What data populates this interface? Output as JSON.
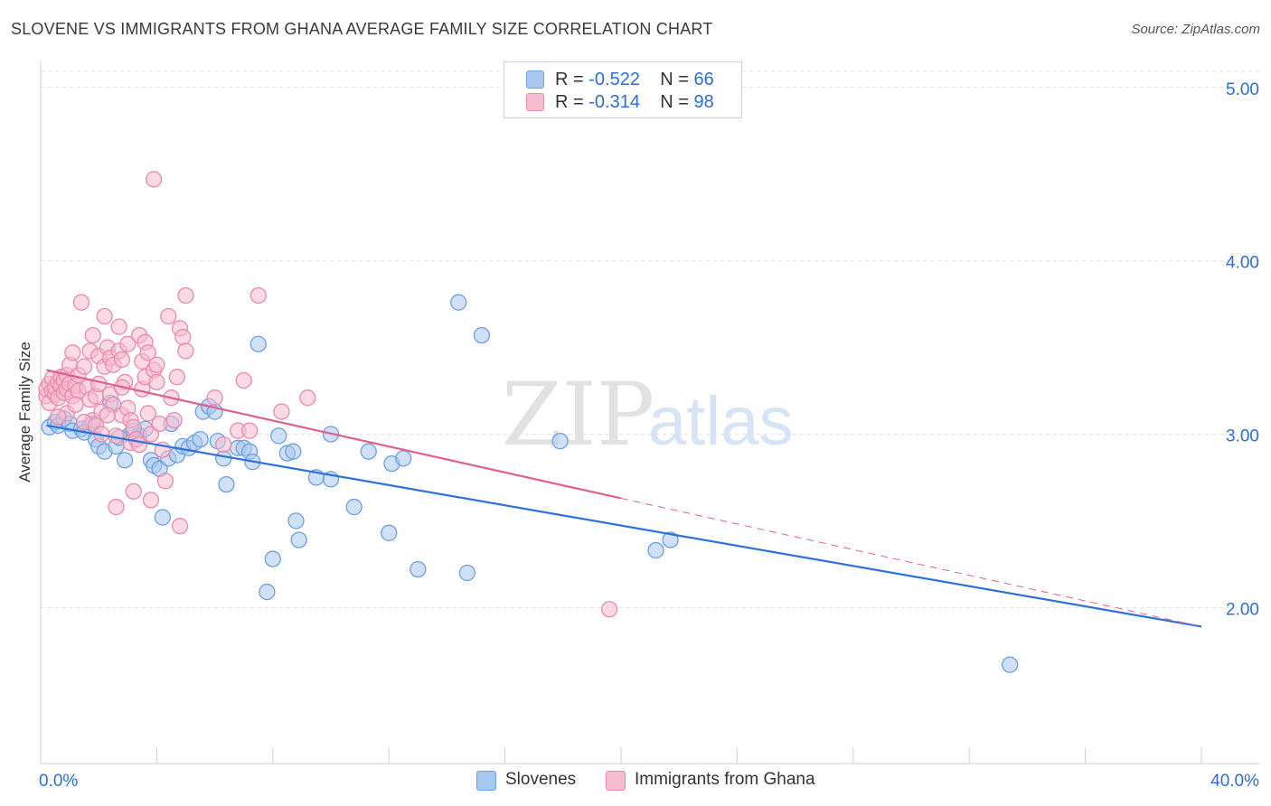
{
  "title": "SLOVENE VS IMMIGRANTS FROM GHANA AVERAGE FAMILY SIZE CORRELATION CHART",
  "source": "Source: ZipAtlas.com",
  "watermark": {
    "zip": "ZIP",
    "atlas": "atlas"
  },
  "legend": {
    "rows": [
      {
        "r_label": "R =",
        "r_value": "-0.522",
        "n_label": "N =",
        "n_value": "66",
        "color": "#a9c8f0",
        "border": "#6d9fe0"
      },
      {
        "r_label": "R =",
        "r_value": "-0.314",
        "n_label": "N =",
        "n_value": "98",
        "color": "#f7bcd0",
        "border": "#e98aab"
      }
    ]
  },
  "bottom_legend": [
    {
      "label": "Slovenes",
      "color": "#a9c8f0",
      "border": "#6d9fe0"
    },
    {
      "label": "Immigrants from Ghana",
      "color": "#f7bcd0",
      "border": "#e98aab"
    }
  ],
  "chart_data": {
    "type": "scatter",
    "ylabel": "Average Family Size",
    "xlim": [
      0,
      40
    ],
    "ylim": [
      1.1,
      5.15
    ],
    "x_tick_labels": [
      "0.0%",
      "40.0%"
    ],
    "y_ticks": [
      2.0,
      3.0,
      4.0,
      5.0
    ],
    "y_tick_labels": [
      "2.00",
      "3.00",
      "4.00",
      "5.00"
    ],
    "grid": true,
    "series": [
      {
        "name": "Slovenes",
        "color": "#6d9fe0",
        "fill": "#a9c8f0",
        "line_color": "#2d72d8",
        "trend": {
          "x": [
            0.2,
            40.0
          ],
          "y": [
            3.05,
            1.89
          ]
        },
        "points": [
          [
            0.3,
            3.04
          ],
          [
            0.5,
            3.07
          ],
          [
            0.6,
            3.05
          ],
          [
            0.8,
            3.09
          ],
          [
            1.0,
            3.06
          ],
          [
            1.1,
            3.02
          ],
          [
            1.4,
            3.03
          ],
          [
            1.5,
            3.01
          ],
          [
            1.7,
            3.05
          ],
          [
            1.8,
            3.06
          ],
          [
            1.9,
            2.97
          ],
          [
            2.0,
            2.93
          ],
          [
            2.2,
            2.9
          ],
          [
            2.4,
            3.18
          ],
          [
            2.6,
            2.93
          ],
          [
            2.7,
            2.98
          ],
          [
            2.9,
            2.85
          ],
          [
            3.1,
            3.0
          ],
          [
            3.2,
            3.02
          ],
          [
            3.4,
            2.99
          ],
          [
            3.6,
            3.03
          ],
          [
            3.8,
            2.85
          ],
          [
            3.9,
            2.82
          ],
          [
            4.1,
            2.8
          ],
          [
            4.2,
            2.52
          ],
          [
            4.4,
            2.86
          ],
          [
            4.5,
            3.06
          ],
          [
            4.7,
            2.88
          ],
          [
            4.9,
            2.93
          ],
          [
            5.1,
            2.92
          ],
          [
            5.3,
            2.95
          ],
          [
            5.5,
            2.97
          ],
          [
            5.6,
            3.13
          ],
          [
            5.8,
            3.16
          ],
          [
            6.0,
            3.13
          ],
          [
            6.1,
            2.96
          ],
          [
            6.3,
            2.86
          ],
          [
            6.4,
            2.71
          ],
          [
            6.8,
            2.92
          ],
          [
            7.0,
            2.92
          ],
          [
            7.2,
            2.9
          ],
          [
            7.3,
            2.84
          ],
          [
            7.5,
            3.52
          ],
          [
            7.8,
            2.09
          ],
          [
            8.0,
            2.28
          ],
          [
            8.2,
            2.99
          ],
          [
            8.5,
            2.89
          ],
          [
            8.7,
            2.9
          ],
          [
            8.8,
            2.5
          ],
          [
            8.9,
            2.39
          ],
          [
            9.5,
            2.75
          ],
          [
            10.0,
            2.74
          ],
          [
            10.0,
            3.0
          ],
          [
            10.8,
            2.58
          ],
          [
            11.3,
            2.9
          ],
          [
            12.0,
            2.43
          ],
          [
            12.1,
            2.83
          ],
          [
            12.5,
            2.86
          ],
          [
            13.0,
            2.22
          ],
          [
            14.4,
            3.76
          ],
          [
            14.7,
            2.2
          ],
          [
            15.2,
            3.57
          ],
          [
            17.9,
            2.96
          ],
          [
            21.2,
            2.33
          ],
          [
            21.7,
            2.39
          ],
          [
            33.4,
            1.67
          ]
        ]
      },
      {
        "name": "Immigrants from Ghana",
        "color": "#e98aab",
        "fill": "#f7bcd0",
        "line_color": "#e0608c",
        "trend": {
          "x": [
            0.2,
            20.0
          ],
          "y": [
            3.37,
            2.63
          ]
        },
        "trend_dashed": {
          "x": [
            20.0,
            40.0
          ],
          "y": [
            2.63,
            1.89
          ]
        },
        "points": [
          [
            0.2,
            3.22
          ],
          [
            0.2,
            3.26
          ],
          [
            0.3,
            3.18
          ],
          [
            0.3,
            3.29
          ],
          [
            0.4,
            3.25
          ],
          [
            0.4,
            3.32
          ],
          [
            0.5,
            3.23
          ],
          [
            0.5,
            3.27
          ],
          [
            0.6,
            3.3
          ],
          [
            0.6,
            3.21
          ],
          [
            0.7,
            3.28
          ],
          [
            0.7,
            3.33
          ],
          [
            0.8,
            3.24
          ],
          [
            0.8,
            3.31
          ],
          [
            0.9,
            3.34
          ],
          [
            0.9,
            3.26
          ],
          [
            1.0,
            3.29
          ],
          [
            1.0,
            3.4
          ],
          [
            1.1,
            3.47
          ],
          [
            1.1,
            3.22
          ],
          [
            1.2,
            3.28
          ],
          [
            1.3,
            3.25
          ],
          [
            1.3,
            3.34
          ],
          [
            1.4,
            3.76
          ],
          [
            1.5,
            3.39
          ],
          [
            1.6,
            3.27
          ],
          [
            1.7,
            3.48
          ],
          [
            1.7,
            3.2
          ],
          [
            1.8,
            3.57
          ],
          [
            1.8,
            3.08
          ],
          [
            1.9,
            3.22
          ],
          [
            2.0,
            3.45
          ],
          [
            2.0,
            3.29
          ],
          [
            2.1,
            3.13
          ],
          [
            2.2,
            3.68
          ],
          [
            2.2,
            3.39
          ],
          [
            2.3,
            3.5
          ],
          [
            2.4,
            3.44
          ],
          [
            2.4,
            3.23
          ],
          [
            2.5,
            3.4
          ],
          [
            2.5,
            3.17
          ],
          [
            2.6,
            2.99
          ],
          [
            2.7,
            3.48
          ],
          [
            2.7,
            3.62
          ],
          [
            2.8,
            3.11
          ],
          [
            2.8,
            3.43
          ],
          [
            2.9,
            3.3
          ],
          [
            3.0,
            3.15
          ],
          [
            3.1,
            3.08
          ],
          [
            3.1,
            2.95
          ],
          [
            3.2,
            2.67
          ],
          [
            3.2,
            3.04
          ],
          [
            3.3,
            2.97
          ],
          [
            3.4,
            3.57
          ],
          [
            3.5,
            3.42
          ],
          [
            3.5,
            3.26
          ],
          [
            3.6,
            3.53
          ],
          [
            3.6,
            3.33
          ],
          [
            3.7,
            3.47
          ],
          [
            3.7,
            3.12
          ],
          [
            3.8,
            2.62
          ],
          [
            3.8,
            3.0
          ],
          [
            3.9,
            3.37
          ],
          [
            3.9,
            4.47
          ],
          [
            4.0,
            3.4
          ],
          [
            4.0,
            3.3
          ],
          [
            4.1,
            3.06
          ],
          [
            4.2,
            2.91
          ],
          [
            4.3,
            2.73
          ],
          [
            4.4,
            3.68
          ],
          [
            4.5,
            3.21
          ],
          [
            4.7,
            3.33
          ],
          [
            4.8,
            2.47
          ],
          [
            4.8,
            3.61
          ],
          [
            4.9,
            3.56
          ],
          [
            5.0,
            3.48
          ],
          [
            5.0,
            3.8
          ],
          [
            6.0,
            3.21
          ],
          [
            6.3,
            2.94
          ],
          [
            6.8,
            3.02
          ],
          [
            7.0,
            3.31
          ],
          [
            7.2,
            3.02
          ],
          [
            7.5,
            3.8
          ],
          [
            8.3,
            3.13
          ],
          [
            9.2,
            3.21
          ],
          [
            19.6,
            1.99
          ],
          [
            2.6,
            2.58
          ],
          [
            1.5,
            3.07
          ],
          [
            0.9,
            3.12
          ],
          [
            2.3,
            3.11
          ],
          [
            1.2,
            3.17
          ],
          [
            3.0,
            3.52
          ],
          [
            0.6,
            3.1
          ],
          [
            1.9,
            3.05
          ],
          [
            2.1,
            3.0
          ],
          [
            4.6,
            3.08
          ],
          [
            3.4,
            2.94
          ],
          [
            2.8,
            3.27
          ]
        ]
      }
    ]
  }
}
